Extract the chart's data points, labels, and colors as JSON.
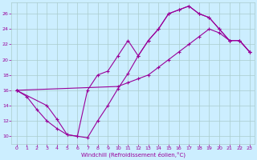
{
  "xlabel": "Windchill (Refroidissement éolien,°C)",
  "bg_color": "#cceeff",
  "grid_color": "#aacccc",
  "line_color": "#990099",
  "xlim": [
    -0.5,
    23.5
  ],
  "ylim": [
    9,
    27.5
  ],
  "xticks": [
    0,
    1,
    2,
    3,
    4,
    5,
    6,
    7,
    8,
    9,
    10,
    11,
    12,
    13,
    14,
    15,
    16,
    17,
    18,
    19,
    20,
    21,
    22,
    23
  ],
  "yticks": [
    10,
    12,
    14,
    16,
    18,
    20,
    22,
    24,
    26
  ],
  "series": [
    [
      [
        0,
        16
      ],
      [
        1,
        15.2
      ],
      [
        2,
        13.5
      ],
      [
        3,
        12
      ],
      [
        4,
        11
      ],
      [
        5,
        10.2
      ],
      [
        6,
        10
      ],
      [
        7,
        9.8
      ],
      [
        8,
        12
      ],
      [
        9,
        14
      ],
      [
        10,
        16.2
      ],
      [
        11,
        18.2
      ],
      [
        12,
        20.5
      ],
      [
        13,
        22.5
      ],
      [
        14,
        24
      ],
      [
        15,
        26
      ],
      [
        16,
        26.5
      ],
      [
        17,
        27
      ],
      [
        18,
        26
      ],
      [
        19,
        25.5
      ],
      [
        20,
        24
      ],
      [
        21,
        22.5
      ],
      [
        22,
        22.5
      ],
      [
        23,
        21
      ]
    ],
    [
      [
        0,
        16
      ],
      [
        3,
        14
      ],
      [
        4,
        12.2
      ],
      [
        5,
        10.2
      ],
      [
        6,
        10
      ],
      [
        7,
        16
      ],
      [
        8,
        18
      ],
      [
        9,
        18.5
      ],
      [
        10,
        20.5
      ],
      [
        11,
        22.5
      ],
      [
        12,
        20.5
      ],
      [
        13,
        22.5
      ],
      [
        14,
        24
      ],
      [
        15,
        26
      ],
      [
        16,
        26.5
      ],
      [
        17,
        27
      ],
      [
        18,
        26
      ],
      [
        19,
        25.5
      ],
      [
        20,
        24
      ],
      [
        21,
        22.5
      ],
      [
        22,
        22.5
      ],
      [
        23,
        21
      ]
    ],
    [
      [
        0,
        16
      ],
      [
        10,
        16.5
      ],
      [
        11,
        17
      ],
      [
        12,
        17.5
      ],
      [
        13,
        18
      ],
      [
        14,
        19
      ],
      [
        15,
        20
      ],
      [
        16,
        21
      ],
      [
        17,
        22
      ],
      [
        18,
        23
      ],
      [
        19,
        24
      ],
      [
        20,
        23.5
      ],
      [
        21,
        22.5
      ],
      [
        22,
        22.5
      ],
      [
        23,
        21
      ]
    ]
  ]
}
